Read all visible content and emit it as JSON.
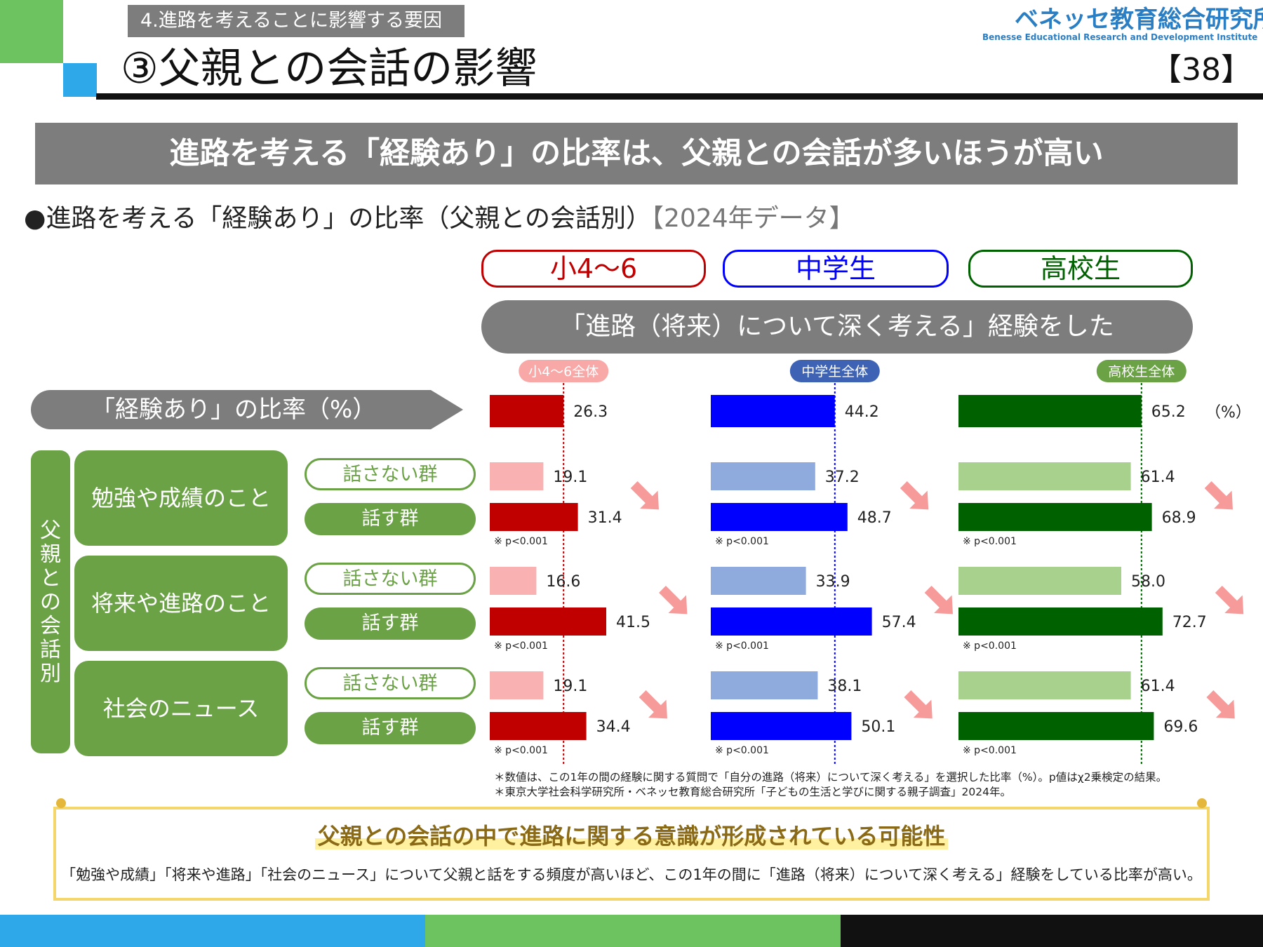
{
  "header": {
    "section_tag": "4.進路を考えることに影響する要因",
    "title": "③父親との会話の影響",
    "org_name": "ベネッセ教育総合研究所",
    "org_name_en": "Benesse Educational Research and Development Institute",
    "page_number": "【38】"
  },
  "headline": "進路を考える「経験あり」の比率は、父親との会話が多いほうが高い",
  "chart_title": {
    "main": "●進路を考える「経験あり」の比率（父親との会話別）",
    "year": "【2024年データ】"
  },
  "grades": [
    "小4～6",
    "中学生",
    "高校生"
  ],
  "question_banner": "「進路（将来）について深く考える」経験をした",
  "rate_label": "「経験あり」の比率（%）",
  "left_label": "父親との会話別",
  "topics": [
    "勉強や成績のこと",
    "将来や進路のこと",
    "社会のニュース"
  ],
  "group_labels": {
    "no_talk": "話さない群",
    "talk": "話す群"
  },
  "unit": "（%）",
  "colors": {
    "elem_total": "#c00000",
    "elem_no": "#f9b1b1",
    "elem_yes": "#c00000",
    "mid_total": "#0000ff",
    "mid_no": "#8faadc",
    "mid_yes": "#0000ff",
    "high_total": "#006100",
    "high_no": "#a9d18e",
    "high_yes": "#006100",
    "trend_arrow": "#f79a9a"
  },
  "chart_data": {
    "type": "bar",
    "orientation": "horizontal",
    "unit": "%",
    "columns": [
      {
        "name": "小4～6",
        "total_label": "小4～6全体",
        "total": 26.3,
        "groups": [
          {
            "topic": "勉強や成績のこと",
            "no_talk": 19.1,
            "talk": 31.4,
            "p": "※ p<0.001"
          },
          {
            "topic": "将来や進路のこと",
            "no_talk": 16.6,
            "talk": 41.5,
            "p": "※ p<0.001"
          },
          {
            "topic": "社会のニュース",
            "no_talk": 19.1,
            "talk": 34.4,
            "p": "※ p<0.001"
          }
        ]
      },
      {
        "name": "中学生",
        "total_label": "中学生全体",
        "total": 44.2,
        "groups": [
          {
            "topic": "勉強や成績のこと",
            "no_talk": 37.2,
            "talk": 48.7,
            "p": "※ p<0.001"
          },
          {
            "topic": "将来や進路のこと",
            "no_talk": 33.9,
            "talk": 57.4,
            "p": "※ p<0.001"
          },
          {
            "topic": "社会のニュース",
            "no_talk": 38.1,
            "talk": 50.1,
            "p": "※ p<0.001"
          }
        ]
      },
      {
        "name": "高校生",
        "total_label": "高校生全体",
        "total": 65.2,
        "groups": [
          {
            "topic": "勉強や成績のこと",
            "no_talk": 61.4,
            "talk": 68.9,
            "p": "※ p<0.001"
          },
          {
            "topic": "将来や進路のこと",
            "no_talk": 58.0,
            "talk": 72.7,
            "p": "※ p<0.001"
          },
          {
            "topic": "社会のニュース",
            "no_talk": 61.4,
            "talk": 69.6,
            "p": "※ p<0.001"
          }
        ]
      }
    ]
  },
  "notes": [
    "＊数値は、この1年の間の経験に関する質問で「自分の進路（将来）について深く考える」を選択した比率（%）。p値はχ2乗検定の結果。",
    "＊東京大学社会科学研究所・ベネッセ教育総合研究所「子どもの生活と学びに関する親子調査」2024年。"
  ],
  "conclusion": {
    "title": "父親との会話の中で進路に関する意識が形成されている可能性",
    "text": "「勉強や成績」「将来や進路」「社会のニュース」について父親と話をする頻度が高いほど、この1年の間に「進路（将来）について深く考える」経験をしている比率が高い。"
  }
}
